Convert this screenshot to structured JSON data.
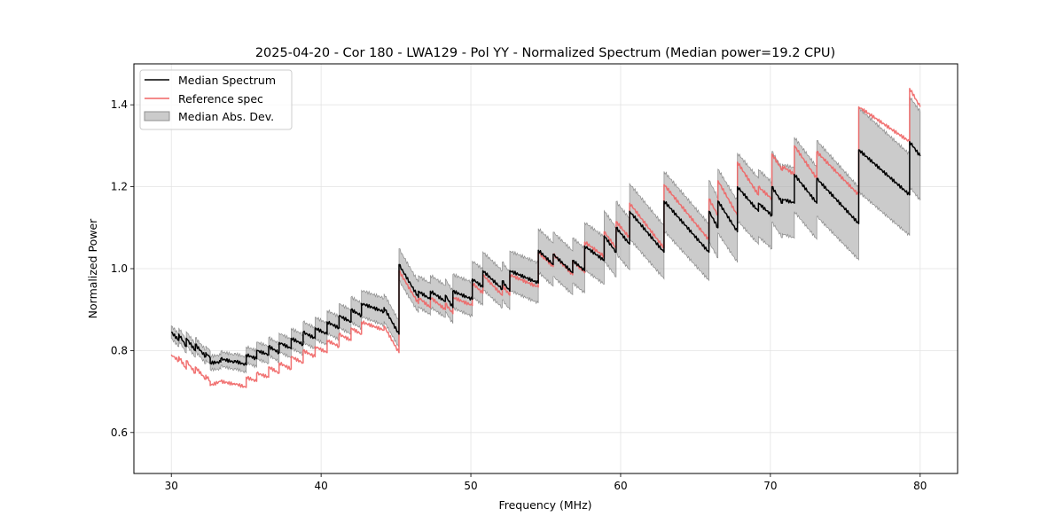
{
  "chart_data": {
    "type": "line",
    "title": "2025-04-20 - Cor 180 - LWA129 - Pol YY - Normalized Spectrum (Median power=19.2 CPU)",
    "xlabel": "Frequency (MHz)",
    "ylabel": "Normalized Power",
    "xlim": [
      27.5,
      82.5
    ],
    "ylim": [
      0.5,
      1.5
    ],
    "xticks": [
      30,
      40,
      50,
      60,
      70,
      80
    ],
    "yticks": [
      0.6,
      0.8,
      1.0,
      1.2,
      1.4
    ],
    "xtick_labels": [
      "30",
      "40",
      "50",
      "60",
      "70",
      "80"
    ],
    "ytick_labels": [
      "0.6",
      "0.8",
      "1.0",
      "1.2",
      "1.4"
    ],
    "grid": true,
    "legend": {
      "placement": "top-left",
      "entries": [
        {
          "label": "Median Spectrum",
          "type": "line",
          "color": "#000000"
        },
        {
          "label": "Reference spec",
          "type": "line",
          "color": "#f06464"
        },
        {
          "label": "Median Abs. Dev.",
          "type": "patch",
          "color": "#a0a0a0"
        }
      ]
    },
    "series": [
      {
        "name": "Median Spectrum",
        "color": "#000000",
        "segments": [
          [
            [
              30.0,
              0.845
            ],
            [
              30.5,
              0.825
            ]
          ],
          [
            [
              30.5,
              0.84
            ],
            [
              31.0,
              0.81
            ]
          ],
          [
            [
              31.0,
              0.83
            ],
            [
              31.6,
              0.8
            ]
          ],
          [
            [
              31.6,
              0.815
            ],
            [
              32.3,
              0.785
            ]
          ],
          [
            [
              32.3,
              0.795
            ],
            [
              32.6,
              0.782
            ]
          ],
          [
            [
              32.6,
              0.77
            ],
            [
              33.3,
              0.772
            ]
          ],
          [
            [
              33.3,
              0.78
            ],
            [
              34.2,
              0.772
            ]
          ],
          [
            [
              34.2,
              0.775
            ],
            [
              35.0,
              0.765
            ]
          ],
          [
            [
              35.0,
              0.79
            ],
            [
              35.7,
              0.78
            ]
          ],
          [
            [
              35.7,
              0.8
            ],
            [
              36.5,
              0.79
            ]
          ],
          [
            [
              36.5,
              0.81
            ],
            [
              37.2,
              0.795
            ]
          ],
          [
            [
              37.2,
              0.82
            ],
            [
              38.0,
              0.805
            ]
          ],
          [
            [
              38.0,
              0.83
            ],
            [
              38.8,
              0.815
            ]
          ],
          [
            [
              38.8,
              0.845
            ],
            [
              39.6,
              0.83
            ]
          ],
          [
            [
              39.6,
              0.855
            ],
            [
              40.4,
              0.84
            ]
          ],
          [
            [
              40.4,
              0.87
            ],
            [
              41.2,
              0.855
            ]
          ],
          [
            [
              41.2,
              0.885
            ],
            [
              42.0,
              0.87
            ]
          ],
          [
            [
              42.0,
              0.9
            ],
            [
              42.7,
              0.885
            ]
          ],
          [
            [
              42.7,
              0.915
            ],
            [
              44.2,
              0.895
            ]
          ],
          [
            [
              44.2,
              0.905
            ],
            [
              45.2,
              0.84
            ]
          ],
          [
            [
              45.2,
              1.01
            ],
            [
              46.5,
              0.93
            ]
          ],
          [
            [
              46.5,
              0.945
            ],
            [
              47.3,
              0.925
            ]
          ],
          [
            [
              47.3,
              0.945
            ],
            [
              48.3,
              0.92
            ]
          ],
          [
            [
              48.3,
              0.935
            ],
            [
              48.8,
              0.905
            ]
          ],
          [
            [
              48.8,
              0.945
            ],
            [
              50.1,
              0.925
            ]
          ],
          [
            [
              50.1,
              0.975
            ],
            [
              50.8,
              0.955
            ]
          ],
          [
            [
              50.8,
              0.995
            ],
            [
              52.1,
              0.95
            ]
          ],
          [
            [
              52.1,
              0.97
            ],
            [
              52.6,
              0.945
            ]
          ],
          [
            [
              52.6,
              0.995
            ],
            [
              54.5,
              0.965
            ]
          ],
          [
            [
              54.5,
              1.045
            ],
            [
              55.5,
              1.01
            ]
          ],
          [
            [
              55.5,
              1.035
            ],
            [
              56.8,
              0.99
            ]
          ],
          [
            [
              56.8,
              1.02
            ],
            [
              57.6,
              0.995
            ]
          ],
          [
            [
              57.6,
              1.055
            ],
            [
              58.9,
              1.02
            ]
          ],
          [
            [
              58.9,
              1.08
            ],
            [
              59.7,
              1.04
            ]
          ],
          [
            [
              59.7,
              1.1
            ],
            [
              60.6,
              1.06
            ]
          ],
          [
            [
              60.6,
              1.14
            ],
            [
              62.9,
              1.04
            ]
          ],
          [
            [
              62.9,
              1.165
            ],
            [
              65.9,
              1.04
            ]
          ],
          [
            [
              65.9,
              1.14
            ],
            [
              66.5,
              1.1
            ]
          ],
          [
            [
              66.5,
              1.165
            ],
            [
              67.8,
              1.09
            ]
          ],
          [
            [
              67.8,
              1.2
            ],
            [
              69.2,
              1.14
            ]
          ],
          [
            [
              69.2,
              1.16
            ],
            [
              70.1,
              1.13
            ]
          ],
          [
            [
              70.1,
              1.2
            ],
            [
              70.8,
              1.16
            ]
          ],
          [
            [
              70.8,
              1.17
            ],
            [
              71.6,
              1.16
            ]
          ],
          [
            [
              71.6,
              1.23
            ],
            [
              73.1,
              1.16
            ]
          ],
          [
            [
              73.1,
              1.22
            ],
            [
              75.9,
              1.11
            ]
          ],
          [
            [
              75.9,
              1.29
            ],
            [
              79.3,
              1.18
            ]
          ],
          [
            [
              79.3,
              1.31
            ],
            [
              80.0,
              1.275
            ]
          ]
        ]
      },
      {
        "name": "Reference spec",
        "color": "#f06464",
        "segments": [
          [
            [
              30.0,
              0.79
            ],
            [
              30.5,
              0.775
            ]
          ],
          [
            [
              30.5,
              0.785
            ],
            [
              31.0,
              0.755
            ]
          ],
          [
            [
              31.0,
              0.775
            ],
            [
              31.6,
              0.745
            ]
          ],
          [
            [
              31.6,
              0.76
            ],
            [
              32.3,
              0.73
            ]
          ],
          [
            [
              32.3,
              0.74
            ],
            [
              32.6,
              0.725
            ]
          ],
          [
            [
              32.6,
              0.715
            ],
            [
              33.3,
              0.725
            ]
          ],
          [
            [
              33.3,
              0.725
            ],
            [
              34.2,
              0.718
            ]
          ],
          [
            [
              34.2,
              0.72
            ],
            [
              35.0,
              0.71
            ]
          ],
          [
            [
              35.0,
              0.735
            ],
            [
              35.7,
              0.725
            ]
          ],
          [
            [
              35.7,
              0.745
            ],
            [
              36.5,
              0.735
            ]
          ],
          [
            [
              36.5,
              0.76
            ],
            [
              37.2,
              0.745
            ]
          ],
          [
            [
              37.2,
              0.77
            ],
            [
              38.0,
              0.755
            ]
          ],
          [
            [
              38.0,
              0.785
            ],
            [
              38.8,
              0.77
            ]
          ],
          [
            [
              38.8,
              0.8
            ],
            [
              39.6,
              0.785
            ]
          ],
          [
            [
              39.6,
              0.81
            ],
            [
              40.4,
              0.795
            ]
          ],
          [
            [
              40.4,
              0.825
            ],
            [
              41.2,
              0.81
            ]
          ],
          [
            [
              41.2,
              0.84
            ],
            [
              42.0,
              0.825
            ]
          ],
          [
            [
              42.0,
              0.855
            ],
            [
              42.7,
              0.84
            ]
          ],
          [
            [
              42.7,
              0.87
            ],
            [
              44.2,
              0.85
            ]
          ],
          [
            [
              44.2,
              0.86
            ],
            [
              45.2,
              0.795
            ]
          ],
          [
            [
              45.2,
              0.995
            ],
            [
              46.5,
              0.915
            ]
          ],
          [
            [
              46.5,
              0.93
            ],
            [
              47.3,
              0.905
            ]
          ],
          [
            [
              47.3,
              0.93
            ],
            [
              48.3,
              0.9
            ]
          ],
          [
            [
              48.3,
              0.915
            ],
            [
              48.8,
              0.89
            ]
          ],
          [
            [
              48.8,
              0.93
            ],
            [
              50.1,
              0.91
            ]
          ],
          [
            [
              50.1,
              0.965
            ],
            [
              50.8,
              0.94
            ]
          ],
          [
            [
              50.8,
              0.985
            ],
            [
              52.1,
              0.935
            ]
          ],
          [
            [
              52.1,
              0.96
            ],
            [
              52.6,
              0.935
            ]
          ],
          [
            [
              52.6,
              0.985
            ],
            [
              54.5,
              0.955
            ]
          ],
          [
            [
              54.5,
              1.04
            ],
            [
              55.5,
              1.005
            ]
          ],
          [
            [
              55.5,
              1.035
            ],
            [
              56.8,
              0.985
            ]
          ],
          [
            [
              56.8,
              1.02
            ],
            [
              57.6,
              0.99
            ]
          ],
          [
            [
              57.6,
              1.065
            ],
            [
              58.9,
              1.03
            ]
          ],
          [
            [
              58.9,
              1.09
            ],
            [
              59.7,
              1.05
            ]
          ],
          [
            [
              59.7,
              1.115
            ],
            [
              60.6,
              1.075
            ]
          ],
          [
            [
              60.6,
              1.16
            ],
            [
              62.9,
              1.05
            ]
          ],
          [
            [
              62.9,
              1.205
            ],
            [
              65.9,
              1.07
            ]
          ],
          [
            [
              65.9,
              1.17
            ],
            [
              66.5,
              1.13
            ]
          ],
          [
            [
              66.5,
              1.215
            ],
            [
              67.8,
              1.13
            ]
          ],
          [
            [
              67.8,
              1.26
            ],
            [
              69.2,
              1.18
            ]
          ],
          [
            [
              69.2,
              1.2
            ],
            [
              70.1,
              1.17
            ]
          ],
          [
            [
              70.1,
              1.28
            ],
            [
              70.8,
              1.24
            ]
          ],
          [
            [
              70.8,
              1.25
            ],
            [
              71.6,
              1.23
            ]
          ],
          [
            [
              71.6,
              1.3
            ],
            [
              73.1,
              1.22
            ]
          ],
          [
            [
              73.1,
              1.285
            ],
            [
              75.9,
              1.18
            ]
          ],
          [
            [
              75.9,
              1.395
            ],
            [
              79.3,
              1.31
            ]
          ],
          [
            [
              79.3,
              1.44
            ],
            [
              80.0,
              1.395
            ]
          ]
        ]
      }
    ],
    "band": {
      "name": "Median Abs. Dev.",
      "color": "#a0a0a0",
      "relative_half_width_start": 0.018,
      "relative_half_width_end": 0.085
    }
  }
}
